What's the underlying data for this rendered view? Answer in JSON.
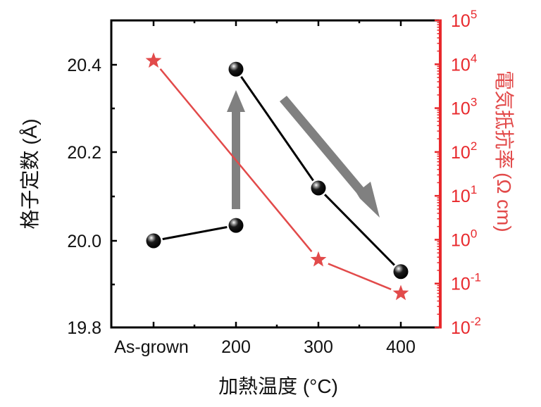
{
  "chart_data": {
    "type": "line",
    "title": "",
    "xlabel": "加熱温度 (°C)",
    "ylabel_left": "格子定数 (Å)",
    "ylabel_right": "電気抵抗率 (Ω cm)",
    "categories": [
      "As-grown",
      "200",
      "300",
      "400"
    ],
    "y_left": {
      "range": [
        19.8,
        20.5
      ],
      "ticks": [
        "19.8",
        "20.0",
        "20.2",
        "20.4"
      ],
      "scale": "linear"
    },
    "y_right": {
      "range": [
        0.01,
        100000
      ],
      "ticks": [
        "10^-2",
        "10^-1",
        "10^0",
        "10^1",
        "10^2",
        "10^3",
        "10^4",
        "10^5"
      ],
      "scale": "log",
      "color": "#e8282c"
    },
    "series": [
      {
        "name": "格子定数 (Å)",
        "axis": "left",
        "marker": "sphere",
        "color": "#000000",
        "segments": [
          {
            "x": [
              "As-grown",
              "200"
            ],
            "values": [
              20.0,
              20.035
            ]
          },
          {
            "x": [
              "200",
              "300",
              "400"
            ],
            "values": [
              20.39,
              20.12,
              19.93
            ]
          }
        ]
      },
      {
        "name": "電気抵抗率 (Ω cm)",
        "axis": "right",
        "marker": "star",
        "color": "#e24a4a",
        "x": [
          "As-grown",
          "300",
          "400"
        ],
        "values": [
          12000,
          0.35,
          0.06
        ]
      }
    ],
    "annotations": [
      {
        "type": "arrow",
        "direction": "up",
        "at": "200",
        "color": "#808080"
      },
      {
        "type": "arrow",
        "direction": "down-right",
        "from": "≈250",
        "to": "≈380",
        "color": "#808080"
      }
    ],
    "grid": false,
    "legend": null
  },
  "axes": {
    "x_title": "加熱温度 (°C)",
    "left_title": "格子定数 (Å)",
    "right_title_main": "電気抵抗率",
    "right_title_unit": "(Ω cm)",
    "x_ticks": [
      "As-grown",
      "200",
      "300",
      "400"
    ],
    "left_ticks": [
      "20.4",
      "20.2",
      "20.0",
      "19.8"
    ],
    "right_ticks": [
      {
        "base": "10",
        "exp": "5"
      },
      {
        "base": "10",
        "exp": "4"
      },
      {
        "base": "10",
        "exp": "3"
      },
      {
        "base": "10",
        "exp": "2"
      },
      {
        "base": "10",
        "exp": "1"
      },
      {
        "base": "10",
        "exp": "0"
      },
      {
        "base": "10",
        "exp": "-1"
      },
      {
        "base": "10",
        "exp": "-2"
      }
    ]
  },
  "colors": {
    "black_series": "#000000",
    "red_series": "#e24a4a",
    "right_axis": "#e8282c",
    "arrow": "#808080"
  }
}
